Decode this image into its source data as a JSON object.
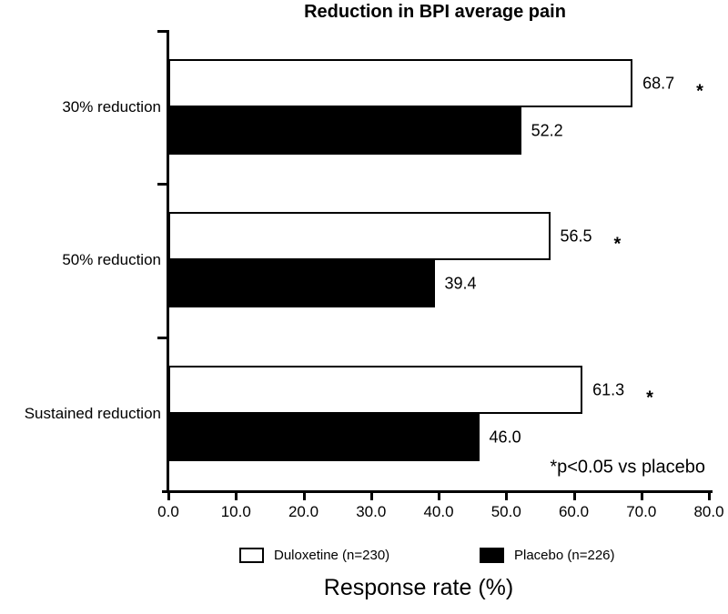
{
  "title": "Reduction in BPI average pain",
  "chart_data": {
    "type": "bar",
    "orientation": "horizontal",
    "title": "Reduction in BPI average pain",
    "categories": [
      "30% reduction",
      "50% reduction",
      "Sustained reduction"
    ],
    "series": [
      {
        "name": "Duloxetine (n=230)",
        "color": "#ffffff",
        "values": [
          68.7,
          56.5,
          61.3
        ],
        "significant": [
          true,
          true,
          true
        ]
      },
      {
        "name": "Placebo (n=226)",
        "color": "#000000",
        "values": [
          52.2,
          39.4,
          46.0
        ],
        "significant": [
          false,
          false,
          false
        ]
      }
    ],
    "xlabel": "Response rate (%)",
    "ylabel": "",
    "xlim": [
      0,
      80
    ],
    "x_ticks": [
      "0.0",
      "10.0",
      "20.0",
      "30.0",
      "40.0",
      "50.0",
      "60.0",
      "70.0",
      "80.0"
    ],
    "grid": false,
    "legend_position": "bottom",
    "significance_marker": "*",
    "annotation": "*p<0.05 vs placebo"
  }
}
